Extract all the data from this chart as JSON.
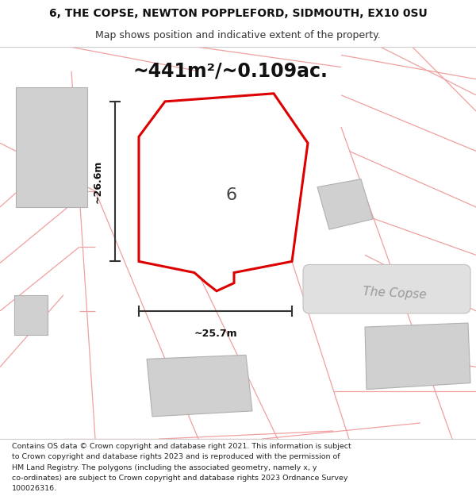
{
  "title_line1": "6, THE COPSE, NEWTON POPPLEFORD, SIDMOUTH, EX10 0SU",
  "title_line2": "Map shows position and indicative extent of the property.",
  "area_label": "~441m²/~0.109ac.",
  "width_label": "~25.7m",
  "height_label": "~26.6m",
  "plot_number": "6",
  "road_label": "The Copse",
  "footer_text": "Contains OS data © Crown copyright and database right 2021. This information is subject to Crown copyright and database rights 2023 and is reproduced with the permission of HM Land Registry. The polygons (including the associated geometry, namely x, y co-ordinates) are subject to Crown copyright and database rights 2023 Ordnance Survey 100026316.",
  "bg_color": "#ffffff",
  "red_plot_color": "#dd0000",
  "figsize": [
    6.0,
    6.25
  ],
  "dpi": 100,
  "title_fontsize": 10,
  "subtitle_fontsize": 9,
  "area_fontsize": 17,
  "dim_fontsize": 9,
  "plot_num_fontsize": 16,
  "road_fontsize": 11,
  "footer_fontsize": 6.8,
  "pink_line_color": "#f0a0a0",
  "gray_fill": "#d0d0d0",
  "gray_edge": "#b0b0b0",
  "road_fill": "#e0e0e0",
  "road_edge": "#c0c0c0"
}
